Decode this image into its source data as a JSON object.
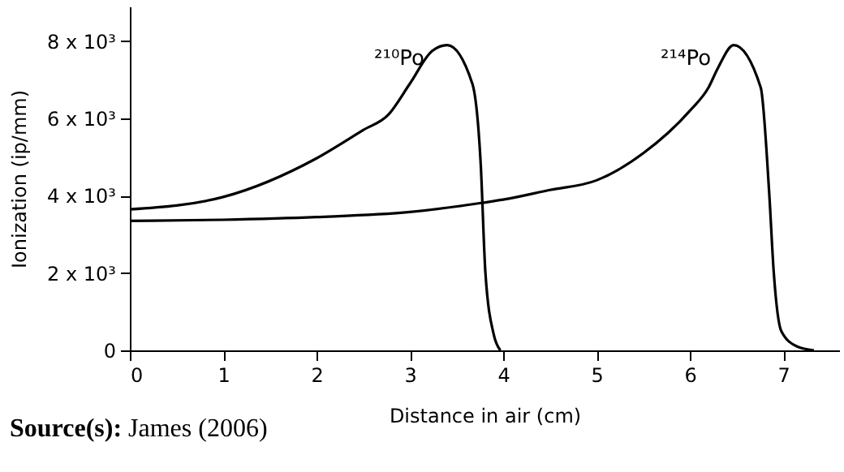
{
  "chart_data": {
    "type": "line",
    "xlabel": "Distance in air (cm)",
    "ylabel": "Ionization (ip/mm)",
    "xlim": [
      0,
      7.6
    ],
    "xticks": [
      0,
      1,
      2,
      3,
      4,
      5,
      6,
      7
    ],
    "ylim": [
      0,
      8900
    ],
    "yticks": [
      0,
      {
        "value": 2000,
        "label": "2 x 10³"
      },
      {
        "value": 4000,
        "label": "4 x 10³"
      },
      {
        "value": 6000,
        "label": "6 x 10³"
      },
      {
        "value": 8000,
        "label": "8 x 10³"
      }
    ],
    "grid": false,
    "marker": "none",
    "line_style": "solid",
    "series": [
      {
        "name": "²¹⁰Po",
        "color": "#000000",
        "x": [
          0,
          1,
          2,
          2.5,
          2.77,
          3,
          3.24,
          3.4,
          3.67,
          3.76,
          3.81,
          3.9,
          3.97
        ],
        "values": [
          3650,
          3970,
          4970,
          5700,
          6100,
          6900,
          7750,
          7900,
          6900,
          4800,
          2000,
          400,
          0
        ]
      },
      {
        "name": "²¹⁴Po",
        "color": "#000000",
        "x": [
          0,
          1,
          2,
          3,
          3.78,
          4,
          4.5,
          5,
          5.5,
          6,
          6.2,
          6.3,
          6.47,
          6.76,
          6.85,
          6.9,
          6.98,
          7.15,
          7.33
        ],
        "values": [
          3350,
          3380,
          3450,
          3580,
          3820,
          3900,
          4150,
          4400,
          5100,
          6200,
          6800,
          7300,
          7900,
          6800,
          4100,
          2000,
          500,
          100,
          0
        ]
      }
    ],
    "annotations": [
      "Source(s): James (2006)"
    ]
  }
}
